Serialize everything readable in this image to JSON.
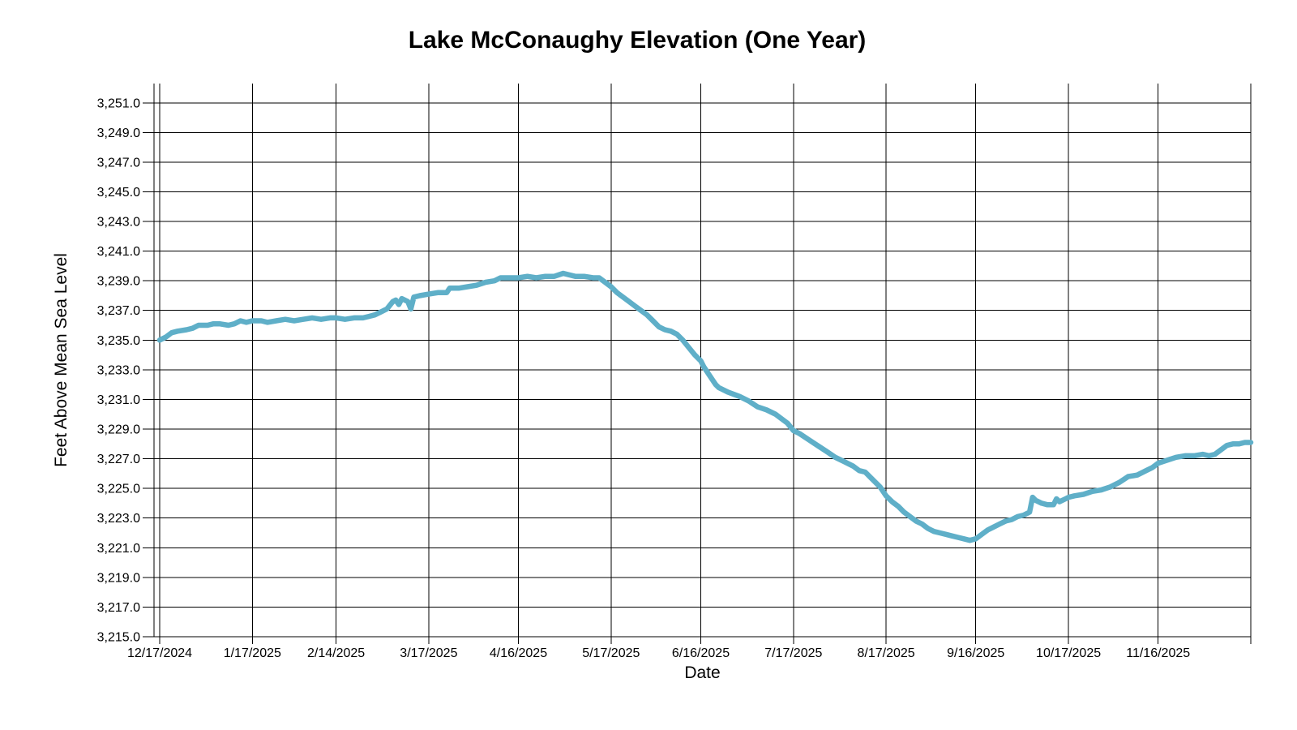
{
  "window": {
    "background": "#FFFFFF"
  },
  "chart_data": {
    "type": "line",
    "title": "Lake McConaughy Elevation (One Year)",
    "xlabel": "Date",
    "ylabel": "Feet Above Mean Sea Level",
    "legend": "none",
    "grid": true,
    "grid_color": "#000000",
    "axis_color": "#000000",
    "text_color": "#000000",
    "line_color": "#5FAFC8",
    "line_width": 6.5,
    "ylim": [
      3215.0,
      3252.3
    ],
    "x_domain_days": [
      0,
      365
    ],
    "y_ticks": [
      {
        "value": 3251,
        "label": "3,251.0"
      },
      {
        "value": 3249,
        "label": "3,249.0"
      },
      {
        "value": 3247,
        "label": "3,247.0"
      },
      {
        "value": 3245,
        "label": "3,245.0"
      },
      {
        "value": 3243,
        "label": "3,243.0"
      },
      {
        "value": 3241,
        "label": "3,241.0"
      },
      {
        "value": 3239,
        "label": "3,239.0"
      },
      {
        "value": 3237,
        "label": "3,237.0"
      },
      {
        "value": 3235,
        "label": "3,235.0"
      },
      {
        "value": 3233,
        "label": "3,233.0"
      },
      {
        "value": 3231,
        "label": "3,231.0"
      },
      {
        "value": 3229,
        "label": "3,229.0"
      },
      {
        "value": 3227,
        "label": "3,227.0"
      },
      {
        "value": 3225,
        "label": "3,225.0"
      },
      {
        "value": 3223,
        "label": "3,223.0"
      },
      {
        "value": 3221,
        "label": "3,221.0"
      },
      {
        "value": 3219,
        "label": "3,219.0"
      },
      {
        "value": 3217,
        "label": "3,217.0"
      },
      {
        "value": 3215,
        "label": "3,215.0"
      }
    ],
    "x_ticks": [
      {
        "day": 0,
        "label": "12/17/2024"
      },
      {
        "day": 31,
        "label": "1/17/2025"
      },
      {
        "day": 59,
        "label": "2/14/2025"
      },
      {
        "day": 90,
        "label": "3/17/2025"
      },
      {
        "day": 120,
        "label": "4/16/2025"
      },
      {
        "day": 151,
        "label": "5/17/2025"
      },
      {
        "day": 181,
        "label": "6/16/2025"
      },
      {
        "day": 212,
        "label": "7/17/2025"
      },
      {
        "day": 243,
        "label": "8/17/2025"
      },
      {
        "day": 273,
        "label": "9/16/2025"
      },
      {
        "day": 304,
        "label": "10/17/2025"
      },
      {
        "day": 334,
        "label": "11/16/2025"
      }
    ],
    "unlabeled_right_gridline_day": 365,
    "series": [
      {
        "points": [
          [
            0,
            3235.0
          ],
          [
            2,
            3235.2
          ],
          [
            4,
            3235.5
          ],
          [
            6,
            3235.6
          ],
          [
            9,
            3235.7
          ],
          [
            11,
            3235.8
          ],
          [
            13,
            3236.0
          ],
          [
            16,
            3236.0
          ],
          [
            18,
            3236.1
          ],
          [
            20,
            3236.1
          ],
          [
            23,
            3236.0
          ],
          [
            25,
            3236.1
          ],
          [
            27,
            3236.3
          ],
          [
            29,
            3236.2
          ],
          [
            31,
            3236.3
          ],
          [
            34,
            3236.3
          ],
          [
            36,
            3236.2
          ],
          [
            39,
            3236.3
          ],
          [
            42,
            3236.4
          ],
          [
            45,
            3236.3
          ],
          [
            48,
            3236.4
          ],
          [
            51,
            3236.5
          ],
          [
            54,
            3236.4
          ],
          [
            57,
            3236.5
          ],
          [
            59,
            3236.5
          ],
          [
            62,
            3236.4
          ],
          [
            65,
            3236.5
          ],
          [
            68,
            3236.5
          ],
          [
            70,
            3236.6
          ],
          [
            72,
            3236.7
          ],
          [
            74,
            3236.9
          ],
          [
            76,
            3237.1
          ],
          [
            78,
            3237.6
          ],
          [
            79,
            3237.7
          ],
          [
            80,
            3237.4
          ],
          [
            81,
            3237.8
          ],
          [
            83,
            3237.6
          ],
          [
            84,
            3237.1
          ],
          [
            85,
            3237.9
          ],
          [
            87,
            3238.0
          ],
          [
            90,
            3238.1
          ],
          [
            93,
            3238.2
          ],
          [
            96,
            3238.2
          ],
          [
            97,
            3238.5
          ],
          [
            100,
            3238.5
          ],
          [
            103,
            3238.6
          ],
          [
            106,
            3238.7
          ],
          [
            109,
            3238.9
          ],
          [
            112,
            3239.0
          ],
          [
            114,
            3239.2
          ],
          [
            117,
            3239.2
          ],
          [
            120,
            3239.2
          ],
          [
            123,
            3239.3
          ],
          [
            126,
            3239.2
          ],
          [
            129,
            3239.3
          ],
          [
            132,
            3239.3
          ],
          [
            135,
            3239.5
          ],
          [
            137,
            3239.4
          ],
          [
            139,
            3239.3
          ],
          [
            142,
            3239.3
          ],
          [
            145,
            3239.2
          ],
          [
            147,
            3239.2
          ],
          [
            149,
            3238.9
          ],
          [
            151,
            3238.6
          ],
          [
            153,
            3238.2
          ],
          [
            155,
            3237.9
          ],
          [
            157,
            3237.6
          ],
          [
            159,
            3237.3
          ],
          [
            161,
            3237.0
          ],
          [
            163,
            3236.7
          ],
          [
            165,
            3236.3
          ],
          [
            167,
            3235.9
          ],
          [
            169,
            3235.7
          ],
          [
            171,
            3235.6
          ],
          [
            173,
            3235.4
          ],
          [
            175,
            3235.0
          ],
          [
            177,
            3234.5
          ],
          [
            179,
            3234.0
          ],
          [
            181,
            3233.6
          ],
          [
            182,
            3233.2
          ],
          [
            184,
            3232.6
          ],
          [
            186,
            3232.0
          ],
          [
            187,
            3231.8
          ],
          [
            190,
            3231.5
          ],
          [
            194,
            3231.2
          ],
          [
            197,
            3230.9
          ],
          [
            200,
            3230.5
          ],
          [
            203,
            3230.3
          ],
          [
            206,
            3230.0
          ],
          [
            208,
            3229.7
          ],
          [
            210,
            3229.4
          ],
          [
            212,
            3228.9
          ],
          [
            214,
            3228.7
          ],
          [
            217,
            3228.3
          ],
          [
            220,
            3227.9
          ],
          [
            223,
            3227.5
          ],
          [
            226,
            3227.1
          ],
          [
            229,
            3226.8
          ],
          [
            232,
            3226.5
          ],
          [
            234,
            3226.2
          ],
          [
            236,
            3226.1
          ],
          [
            238,
            3225.7
          ],
          [
            240,
            3225.3
          ],
          [
            241,
            3225.1
          ],
          [
            243,
            3224.5
          ],
          [
            245,
            3224.1
          ],
          [
            247,
            3223.8
          ],
          [
            249,
            3223.4
          ],
          [
            251,
            3223.1
          ],
          [
            253,
            3222.8
          ],
          [
            255,
            3222.6
          ],
          [
            257,
            3222.3
          ],
          [
            259,
            3222.1
          ],
          [
            261,
            3222.0
          ],
          [
            263,
            3221.9
          ],
          [
            265,
            3221.8
          ],
          [
            267,
            3221.7
          ],
          [
            269,
            3221.6
          ],
          [
            271,
            3221.5
          ],
          [
            273,
            3221.6
          ],
          [
            275,
            3221.9
          ],
          [
            277,
            3222.2
          ],
          [
            279,
            3222.4
          ],
          [
            281,
            3222.6
          ],
          [
            283,
            3222.8
          ],
          [
            285,
            3222.9
          ],
          [
            287,
            3223.1
          ],
          [
            289,
            3223.2
          ],
          [
            291,
            3223.4
          ],
          [
            292,
            3224.4
          ],
          [
            293,
            3224.2
          ],
          [
            295,
            3224.0
          ],
          [
            297,
            3223.9
          ],
          [
            299,
            3223.9
          ],
          [
            300,
            3224.3
          ],
          [
            301,
            3224.1
          ],
          [
            303,
            3224.3
          ],
          [
            304,
            3224.4
          ],
          [
            306,
            3224.5
          ],
          [
            309,
            3224.6
          ],
          [
            312,
            3224.8
          ],
          [
            315,
            3224.9
          ],
          [
            318,
            3225.1
          ],
          [
            321,
            3225.4
          ],
          [
            324,
            3225.8
          ],
          [
            327,
            3225.9
          ],
          [
            330,
            3226.2
          ],
          [
            332,
            3226.4
          ],
          [
            334,
            3226.7
          ],
          [
            337,
            3226.9
          ],
          [
            340,
            3227.1
          ],
          [
            343,
            3227.2
          ],
          [
            346,
            3227.2
          ],
          [
            349,
            3227.3
          ],
          [
            351,
            3227.2
          ],
          [
            353,
            3227.3
          ],
          [
            355,
            3227.6
          ],
          [
            357,
            3227.9
          ],
          [
            359,
            3228.0
          ],
          [
            361,
            3228.0
          ],
          [
            363,
            3228.1
          ],
          [
            365,
            3228.1
          ]
        ]
      }
    ]
  }
}
